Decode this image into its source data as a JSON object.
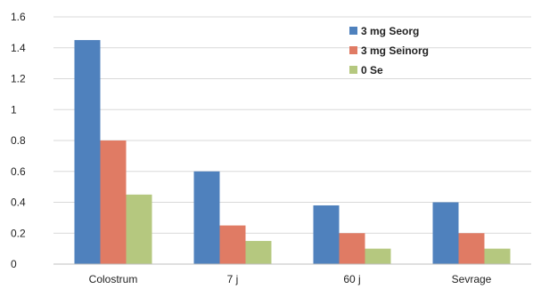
{
  "chart_data": {
    "type": "bar",
    "title": "",
    "xlabel": "",
    "ylabel": "",
    "categories": [
      "Colostrum",
      "7 j",
      "60 j",
      "Sevrage"
    ],
    "series": [
      {
        "name": "3 mg Seorg",
        "color": "#4f81bd",
        "values": [
          1.45,
          0.6,
          0.38,
          0.4
        ]
      },
      {
        "name": "3 mg Seinorg",
        "color": "#e07b64",
        "values": [
          0.8,
          0.25,
          0.2,
          0.2
        ]
      },
      {
        "name": "0 Se",
        "color": "#b5c87f",
        "values": [
          0.45,
          0.15,
          0.1,
          0.1
        ]
      }
    ],
    "ylim": [
      0,
      1.6
    ],
    "yticks": [
      "0",
      "0.2",
      "0.4",
      "0.6",
      "0.8",
      "1",
      "1.2",
      "1.4",
      "1.6"
    ],
    "grid": true,
    "legend_position": "top-right"
  }
}
